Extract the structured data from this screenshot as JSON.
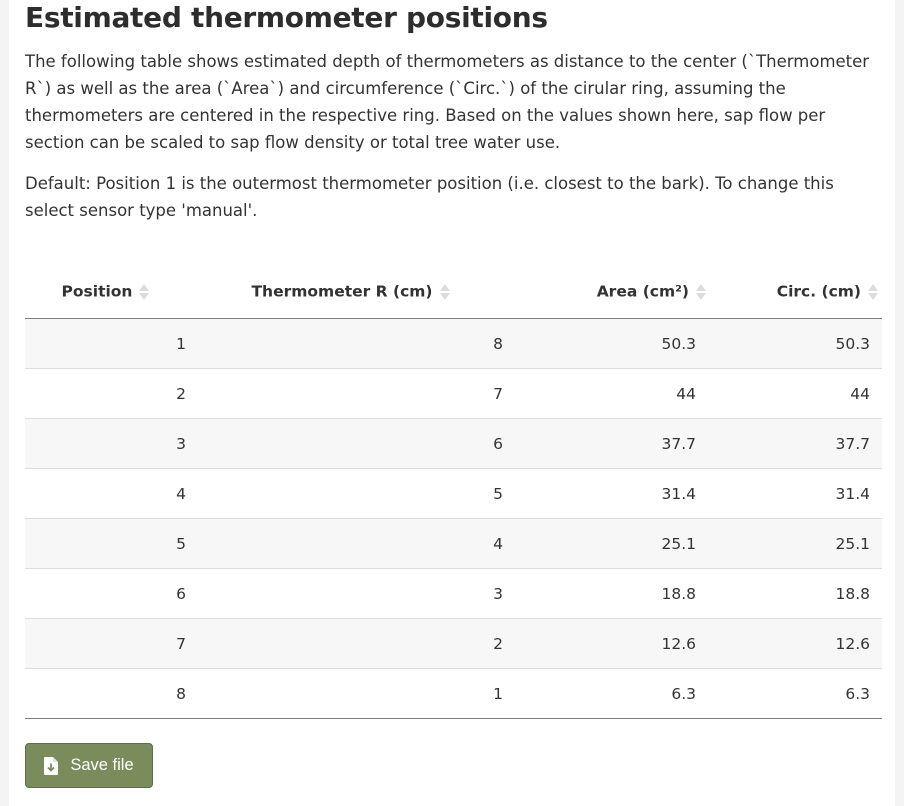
{
  "section": {
    "title": "Estimated thermometer positions",
    "description": "The following table shows estimated depth of thermometers as distance to the center (`Thermometer R`) as well as the area (`Area`) and circumference (`Circ.`) of the cirular ring, assuming the thermometers are centered in the respective ring. Based on the values shown here, sap flow per section can be scaled to sap flow density or total tree water use.",
    "note": "Default: Position 1 is the outermost thermometer position (i.e. closest to the bark). To change this select sensor type 'manual'."
  },
  "table": {
    "headers": [
      "Position",
      "Thermometer R (cm)",
      "Area (cm²)",
      "Circ. (cm)"
    ],
    "rows": [
      [
        "1",
        "8",
        "50.3",
        "50.3"
      ],
      [
        "2",
        "7",
        "44",
        "44"
      ],
      [
        "3",
        "6",
        "37.7",
        "37.7"
      ],
      [
        "4",
        "5",
        "31.4",
        "31.4"
      ],
      [
        "5",
        "4",
        "25.1",
        "25.1"
      ],
      [
        "6",
        "3",
        "18.8",
        "18.8"
      ],
      [
        "7",
        "2",
        "12.6",
        "12.6"
      ],
      [
        "8",
        "1",
        "6.3",
        "6.3"
      ]
    ]
  },
  "actions": {
    "save_label": "Save file",
    "save_icon": "file-download-icon"
  },
  "colors": {
    "button_bg": "#7a8c5b",
    "stripe": "#f7f7f7"
  }
}
